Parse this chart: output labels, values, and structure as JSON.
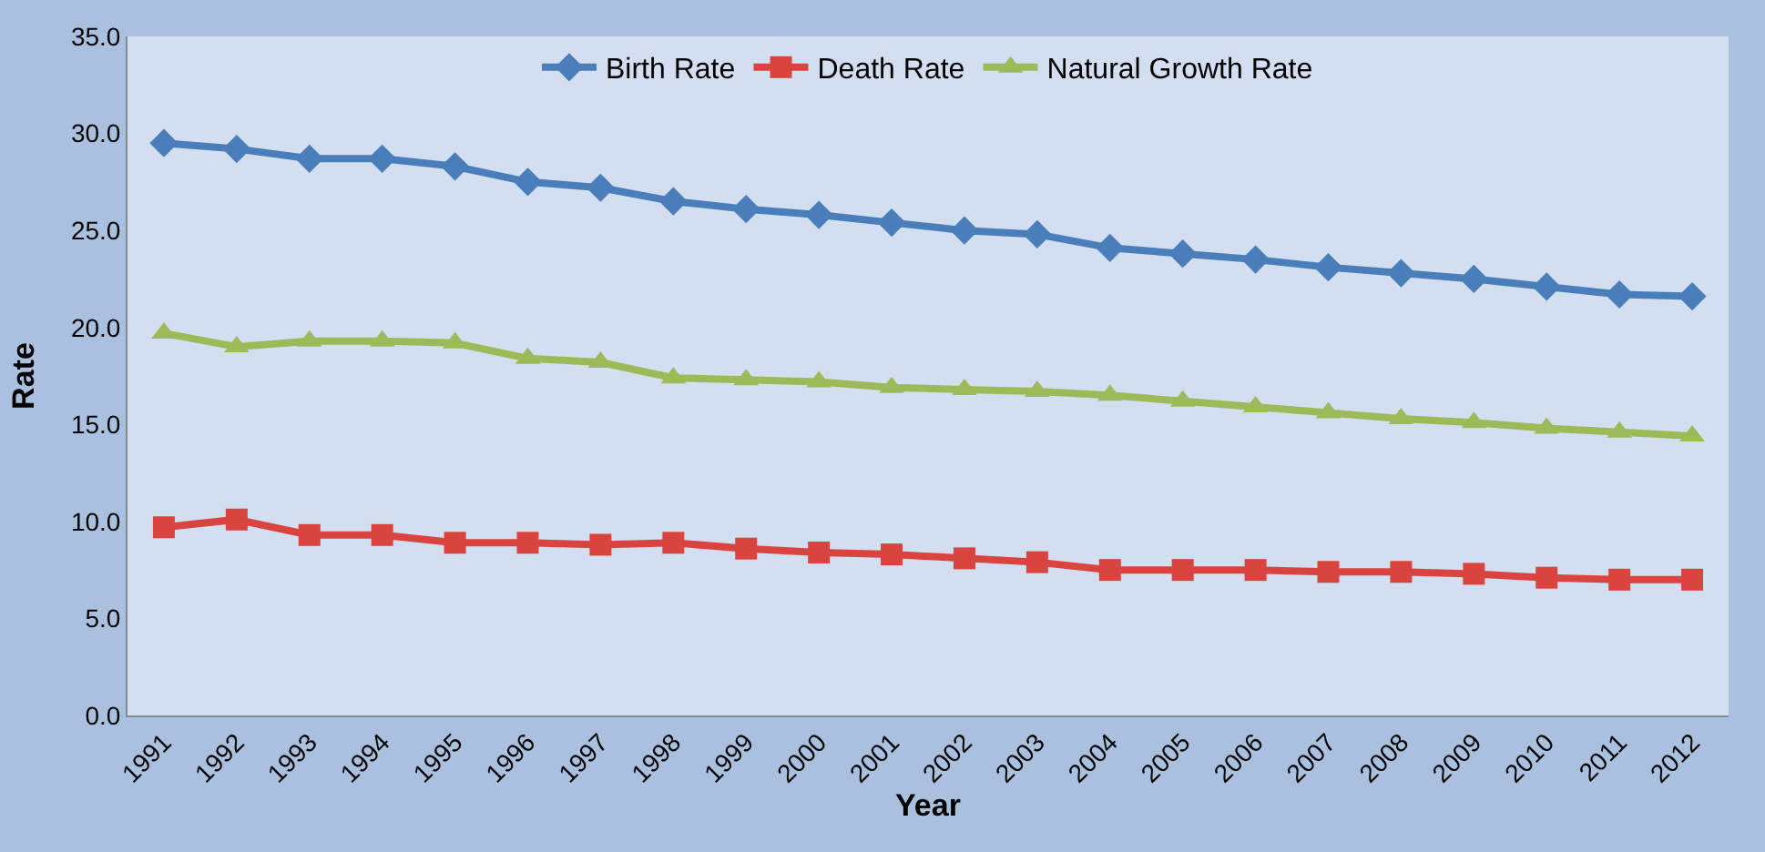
{
  "chart_data": {
    "type": "line",
    "xlabel": "Year",
    "ylabel": "Rate",
    "categories": [
      "1991",
      "1992",
      "1993",
      "1994",
      "1995",
      "1996",
      "1997",
      "1998",
      "1999",
      "2000",
      "2001",
      "2002",
      "2003",
      "2004",
      "2005",
      "2006",
      "2007",
      "2008",
      "2009",
      "2010",
      "2011",
      "2012"
    ],
    "series": [
      {
        "name": "Birth Rate",
        "color": "#4a7ebb",
        "marker": "diamond",
        "values": [
          29.5,
          29.2,
          28.7,
          28.7,
          28.3,
          27.5,
          27.2,
          26.5,
          26.1,
          25.8,
          25.4,
          25.0,
          24.8,
          24.1,
          23.8,
          23.5,
          23.1,
          22.8,
          22.5,
          22.1,
          21.7,
          21.6
        ]
      },
      {
        "name": "Death Rate",
        "color": "#d9443f",
        "marker": "square",
        "values": [
          9.7,
          10.1,
          9.3,
          9.3,
          8.9,
          8.9,
          8.8,
          8.9,
          8.6,
          8.4,
          8.3,
          8.1,
          7.9,
          7.5,
          7.5,
          7.5,
          7.4,
          7.4,
          7.3,
          7.1,
          7.0,
          7.0
        ]
      },
      {
        "name": "Natural Growth Rate",
        "color": "#9bbb59",
        "marker": "triangle",
        "values": [
          19.7,
          19.0,
          19.3,
          19.3,
          19.2,
          18.4,
          18.2,
          17.4,
          17.3,
          17.2,
          16.9,
          16.8,
          16.7,
          16.5,
          16.2,
          15.9,
          15.6,
          15.3,
          15.1,
          14.8,
          14.6,
          14.4
        ]
      }
    ],
    "ylim": [
      0,
      35
    ],
    "yticks": [
      {
        "value": 0,
        "label": "0.0"
      },
      {
        "value": 5,
        "label": "5.0"
      },
      {
        "value": 10,
        "label": "10.0"
      },
      {
        "value": 15,
        "label": "15.0"
      },
      {
        "value": 20,
        "label": "20.0"
      },
      {
        "value": 25,
        "label": "25.0"
      },
      {
        "value": 30,
        "label": "30.0"
      },
      {
        "value": 35,
        "label": "35.0"
      }
    ],
    "grid": false,
    "legend": "top",
    "line_style": "solid"
  }
}
